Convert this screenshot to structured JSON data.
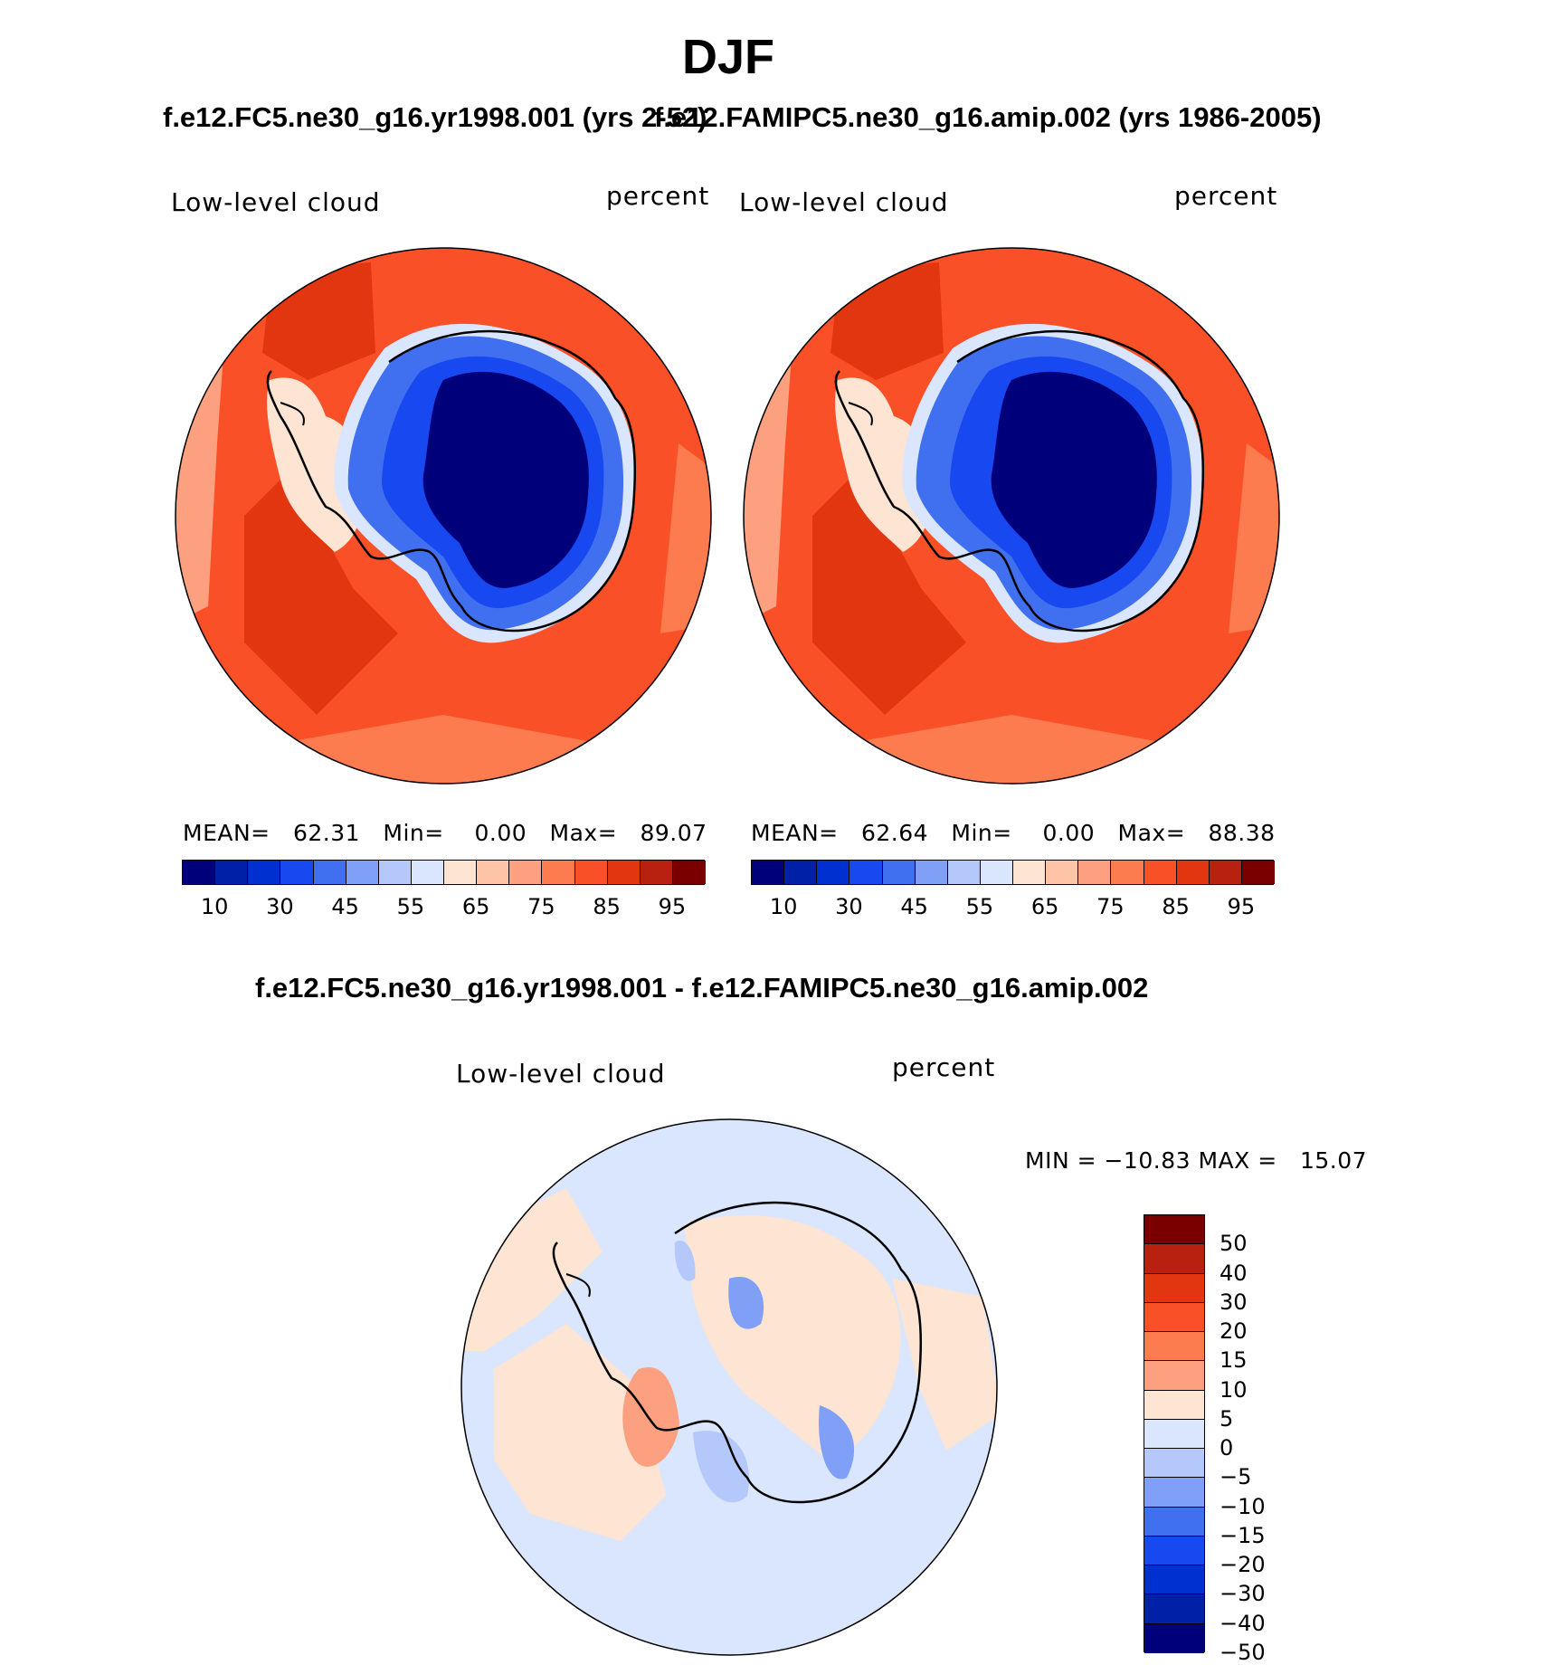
{
  "page_title": "DJF",
  "panels": [
    {
      "case_title": "f.e12.FC5.ne30_g16.yr1998.001 (yrs 2-52)",
      "variable_label": "Low-level cloud",
      "units_label": "percent",
      "stats": {
        "mean_label": "MEAN=",
        "mean": "62.31",
        "min_label": "Min=",
        "min": "0.00",
        "max_label": "Max=",
        "max": "89.07"
      }
    },
    {
      "case_title": "f.e12.FAMIPC5.ne30_g16.amip.002 (yrs 1986-2005)",
      "variable_label": "Low-level cloud",
      "units_label": "percent",
      "stats": {
        "mean_label": "MEAN=",
        "mean": "62.64",
        "min_label": "Min=",
        "min": "0.00",
        "max_label": "Max=",
        "max": "88.38"
      }
    }
  ],
  "abs_colorbar": {
    "colors": [
      "#00007a",
      "#0020a8",
      "#0030d0",
      "#1848f0",
      "#4070f0",
      "#80a0f8",
      "#b4c8fc",
      "#dae6fe",
      "#fee4d2",
      "#fec4a8",
      "#fca080",
      "#fc7c50",
      "#fa5028",
      "#e23610",
      "#b82010",
      "#7a0000"
    ],
    "labels": [
      "10",
      "30",
      "45",
      "55",
      "65",
      "75",
      "85",
      "95"
    ]
  },
  "diff_panel": {
    "case_title": "f.e12.FC5.ne30_g16.yr1998.001 - f.e12.FAMIPC5.ne30_g16.amip.002",
    "variable_label": "Low-level cloud",
    "units_label": "percent",
    "minmax_text": "MIN = −10.83 MAX =   15.07"
  },
  "diff_colorbar": {
    "colors": [
      "#7a0000",
      "#b82010",
      "#e23610",
      "#fa5028",
      "#fc7c50",
      "#fca080",
      "#fee4d2",
      "#dae6fe",
      "#b4c8fc",
      "#80a0f8",
      "#4070f0",
      "#1848f0",
      "#0030d0",
      "#0020a8",
      "#00007a"
    ],
    "labels": [
      "50",
      "40",
      "30",
      "20",
      "15",
      "10",
      "5",
      "0",
      "−5",
      "−10",
      "−15",
      "−20",
      "−30",
      "−40",
      "−50"
    ]
  }
}
